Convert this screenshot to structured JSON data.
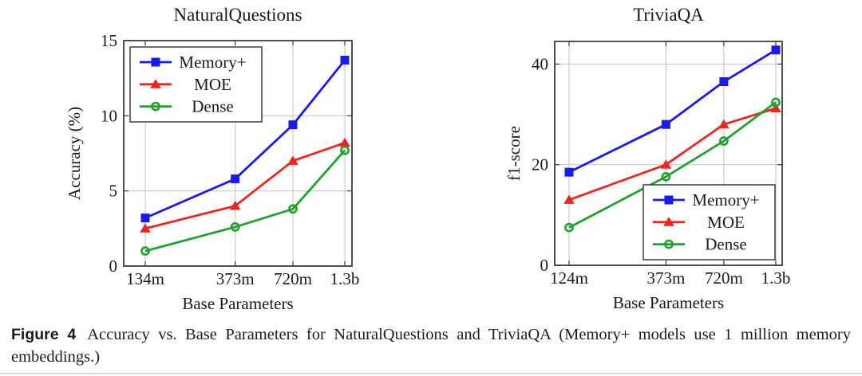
{
  "caption": {
    "label": "Figure 4",
    "text": "Accuracy vs. Base Parameters for NaturalQuestions and TriviaQA (Memory+ models use 1 million memory embeddings.)"
  },
  "colors": {
    "memory_plus": "#1a1aee",
    "moe": "#f0241f",
    "dense": "#1fa32c",
    "grid": "#c8c8c8",
    "axis": "#3d3d3d",
    "legend_border": "#3d3d3d",
    "legend_bg": "#ffffff",
    "text": "#1a1a1a"
  },
  "chart_data": [
    {
      "type": "line",
      "id": "naturalquestions-chart",
      "title": "NaturalQuestions",
      "xlabel": "Base Parameters",
      "ylabel": "Accuracy (%)",
      "categories": [
        "134m",
        "373m",
        "720m",
        "1.3b"
      ],
      "x_numeric": [
        134,
        373,
        720,
        1300
      ],
      "x_scale": "log",
      "yticks": [
        0,
        5,
        10,
        15
      ],
      "ylim": [
        0,
        15
      ],
      "grid": true,
      "legend_position": "top-left",
      "series": [
        {
          "name": "Memory+",
          "color_key": "memory_plus",
          "marker": "square",
          "values": [
            3.2,
            5.8,
            9.4,
            13.7
          ]
        },
        {
          "name": "MOE",
          "color_key": "moe",
          "marker": "triangle",
          "values": [
            2.5,
            4.0,
            7.0,
            8.2
          ]
        },
        {
          "name": "Dense",
          "color_key": "dense",
          "marker": "circle-open",
          "values": [
            1.0,
            2.6,
            3.8,
            7.7
          ]
        }
      ]
    },
    {
      "type": "line",
      "id": "triviaqa-chart",
      "title": "TriviaQA",
      "xlabel": "Base Parameters",
      "ylabel": "f1-score",
      "categories": [
        "124m",
        "373m",
        "720m",
        "1.3b"
      ],
      "x_numeric": [
        124,
        373,
        720,
        1300
      ],
      "x_scale": "log",
      "yticks": [
        0,
        20,
        40
      ],
      "ylim": [
        0,
        44.5
      ],
      "grid": true,
      "legend_position": "bottom-right",
      "series": [
        {
          "name": "Memory+",
          "color_key": "memory_plus",
          "marker": "square",
          "values": [
            18.5,
            28.0,
            36.5,
            42.8
          ]
        },
        {
          "name": "MOE",
          "color_key": "moe",
          "marker": "triangle",
          "values": [
            13.0,
            20.0,
            28.0,
            31.2
          ]
        },
        {
          "name": "Dense",
          "color_key": "dense",
          "marker": "circle-open",
          "values": [
            7.5,
            17.6,
            24.7,
            32.4
          ]
        }
      ]
    }
  ]
}
